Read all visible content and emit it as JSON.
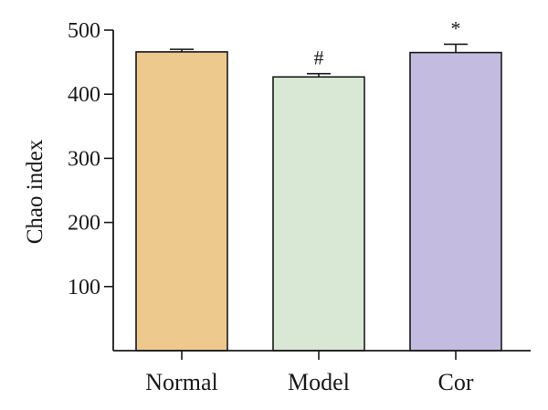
{
  "chart_data": {
    "type": "bar",
    "categories": [
      "Normal",
      "Model",
      "Cor"
    ],
    "values": [
      466,
      427,
      465
    ],
    "errors": [
      4,
      5,
      13
    ],
    "annotations": [
      "",
      "#",
      "*"
    ],
    "bar_colors": [
      "#edc98e",
      "#d8e8d4",
      "#c3bce0"
    ],
    "ylabel": "Chao index",
    "xlabel": "",
    "ylim": [
      0,
      500
    ],
    "yticks": [
      100,
      200,
      300,
      400,
      500
    ],
    "grid": false
  }
}
